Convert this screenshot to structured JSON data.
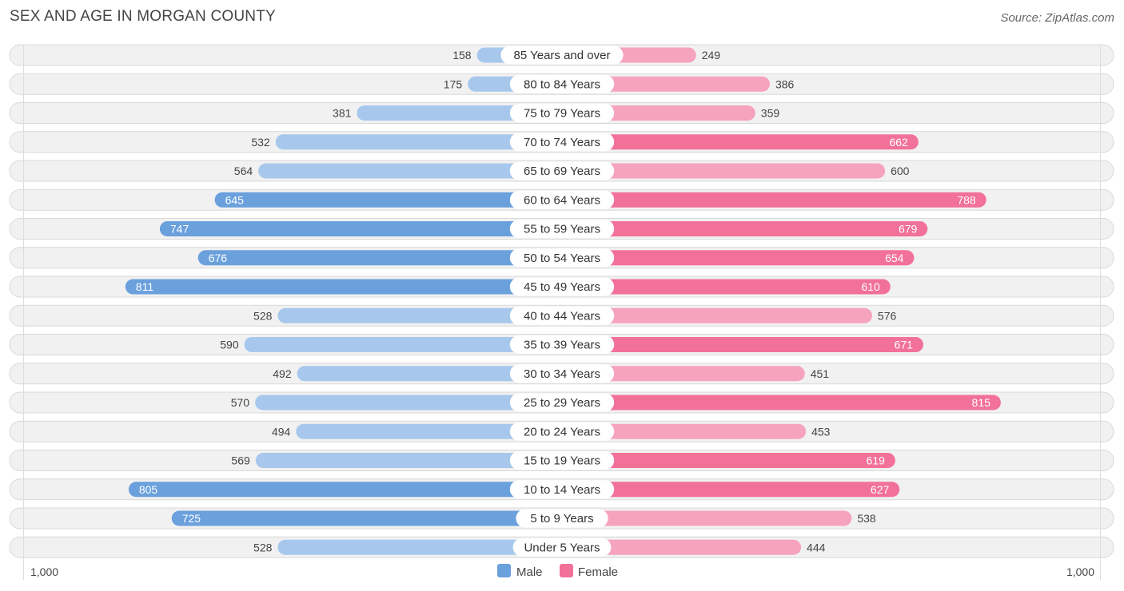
{
  "header": {
    "title": "SEX AND AGE IN MORGAN COUNTY",
    "source": "Source: ZipAtlas.com"
  },
  "colors": {
    "male_strong": "#6aa0dc",
    "male_light": "#a7c8ec",
    "female_strong": "#f27199",
    "female_light": "#f6a3bd"
  },
  "chart_data": {
    "type": "bar",
    "orientation": "horizontal-diverging",
    "categories": [
      "85 Years and over",
      "80 to 84 Years",
      "75 to 79 Years",
      "70 to 74 Years",
      "65 to 69 Years",
      "60 to 64 Years",
      "55 to 59 Years",
      "50 to 54 Years",
      "45 to 49 Years",
      "40 to 44 Years",
      "35 to 39 Years",
      "30 to 34 Years",
      "25 to 29 Years",
      "20 to 24 Years",
      "15 to 19 Years",
      "10 to 14 Years",
      "5 to 9 Years",
      "Under 5 Years"
    ],
    "series": [
      {
        "name": "Male",
        "values": [
          158,
          175,
          381,
          532,
          564,
          645,
          747,
          676,
          811,
          528,
          590,
          492,
          570,
          494,
          569,
          805,
          725,
          528
        ]
      },
      {
        "name": "Female",
        "values": [
          249,
          386,
          359,
          662,
          600,
          788,
          679,
          654,
          610,
          576,
          671,
          451,
          815,
          453,
          619,
          627,
          538,
          444
        ]
      }
    ],
    "axis": {
      "left_label": "1,000",
      "right_label": "1,000",
      "max": 1000
    },
    "legend": {
      "position": "bottom-center",
      "items": [
        "Male",
        "Female"
      ]
    }
  }
}
